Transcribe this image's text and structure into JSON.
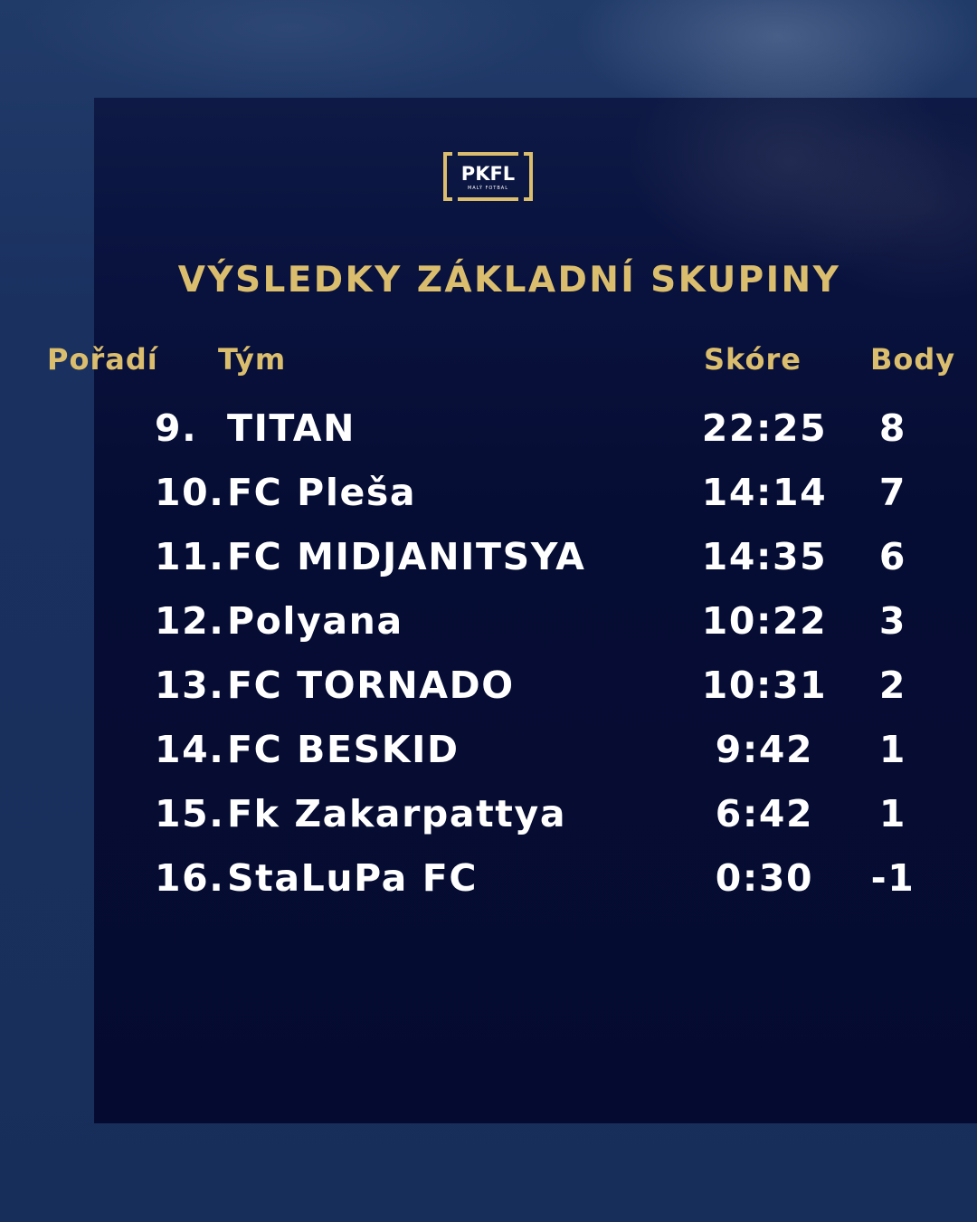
{
  "logo": {
    "text": "PKFL",
    "subtitle": "MALÝ FOTBAL",
    "color": "#dbbd6e"
  },
  "title": "VÝSLEDKY ZÁKLADNÍ SKUPINY",
  "headers": {
    "rank": "Pořadí",
    "team": "Tým",
    "score": "Skóre",
    "points": "Body"
  },
  "rows": [
    {
      "rank": "9.",
      "team": "TITAN",
      "score": "22:25",
      "points": "8"
    },
    {
      "rank": "10.",
      "team": "FC Pleša",
      "score": "14:14",
      "points": "7"
    },
    {
      "rank": "11.",
      "team": "FC MIDJANITSYA",
      "score": "14:35",
      "points": "6"
    },
    {
      "rank": "12.",
      "team": "Polyana",
      "score": "10:22",
      "points": "3"
    },
    {
      "rank": "13.",
      "team": "FC TORNADO",
      "score": "10:31",
      "points": "2"
    },
    {
      "rank": "14.",
      "team": "FC BESKID",
      "score": "9:42",
      "points": "1"
    },
    {
      "rank": "15.",
      "team": "Fk Zakarpattya",
      "score": "6:42",
      "points": "1"
    },
    {
      "rank": "16.",
      "team": "StaLuPa FC",
      "score": "0:30",
      "points": "-1"
    }
  ],
  "colors": {
    "accent": "#dbbd6e",
    "background": "#182e5a",
    "panel": "#050b30",
    "text": "#ffffff"
  }
}
